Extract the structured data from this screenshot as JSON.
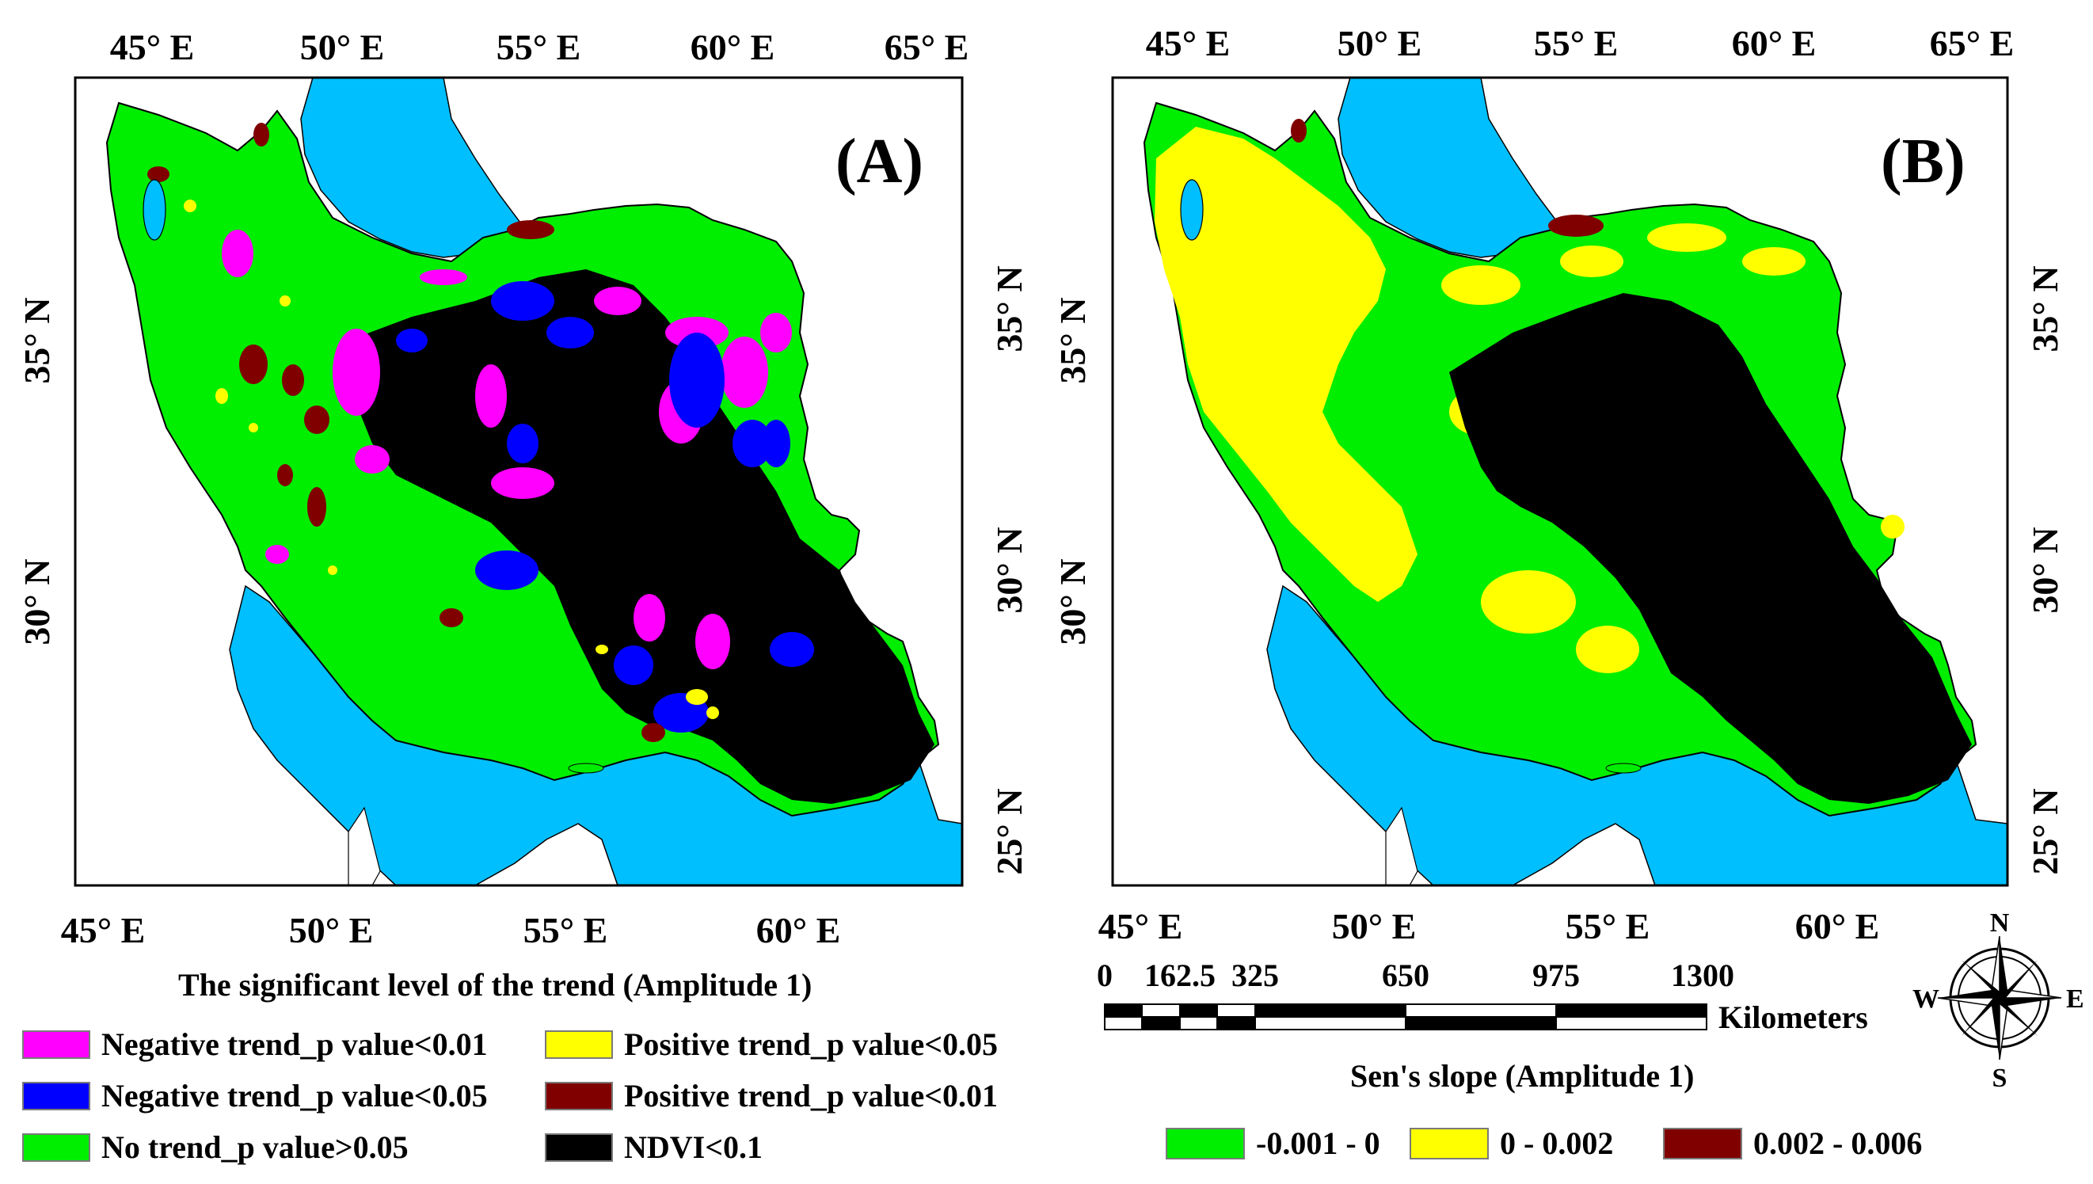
{
  "colors": {
    "sea": "#00BFFF",
    "no_trend": "#00EE00",
    "neg_001": "#FF00FF",
    "neg_005": "#0000FF",
    "pos_005": "#FFFF00",
    "pos_001": "#800000",
    "ndvi": "#000000"
  },
  "panel_a": {
    "label": "(A)",
    "top_ticks": [
      "45° E",
      "50° E",
      "55° E",
      "60° E",
      "65° E"
    ],
    "bottom_ticks": [
      "45° E",
      "50° E",
      "55° E",
      "60° E"
    ],
    "left_ticks": [
      "35° N",
      "30° N"
    ],
    "right_ticks": [
      "35° N",
      "30° N",
      "25° N"
    ],
    "legend_title": "The significant level of the trend (Amplitude 1)",
    "legend": [
      {
        "label": "Negative trend_p value<0.01",
        "color": "#FF00FF"
      },
      {
        "label": "Negative trend_p value<0.05",
        "color": "#0000FF"
      },
      {
        "label": "No trend_p value>0.05",
        "color": "#00EE00"
      },
      {
        "label": "Positive trend_p value<0.05",
        "color": "#FFFF00"
      },
      {
        "label": "Positive trend_p value<0.01",
        "color": "#800000"
      },
      {
        "label": "NDVI<0.1",
        "color": "#000000"
      }
    ]
  },
  "panel_b": {
    "label": "(B)",
    "top_ticks": [
      "45° E",
      "50° E",
      "55° E",
      "60° E",
      "65° E"
    ],
    "bottom_ticks": [
      "45° E",
      "50° E",
      "55° E",
      "60° E"
    ],
    "left_ticks": [
      "35° N",
      "30° N"
    ],
    "right_ticks": [
      "35° N",
      "30° N",
      "25° N"
    ],
    "scale_ticks": [
      "0",
      "162.5",
      "325",
      "650",
      "975",
      "1300"
    ],
    "scale_unit": "Kilometers",
    "compass": {
      "n": "N",
      "e": "E",
      "s": "S",
      "w": "W"
    },
    "legend_title": "Sen's slope (Amplitude 1)",
    "legend": [
      {
        "label": "-0.001 - 0",
        "color": "#00EE00"
      },
      {
        "label": "0 - 0.002",
        "color": "#FFFF00"
      },
      {
        "label": "0.002 - 0.006",
        "color": "#800000"
      }
    ]
  }
}
